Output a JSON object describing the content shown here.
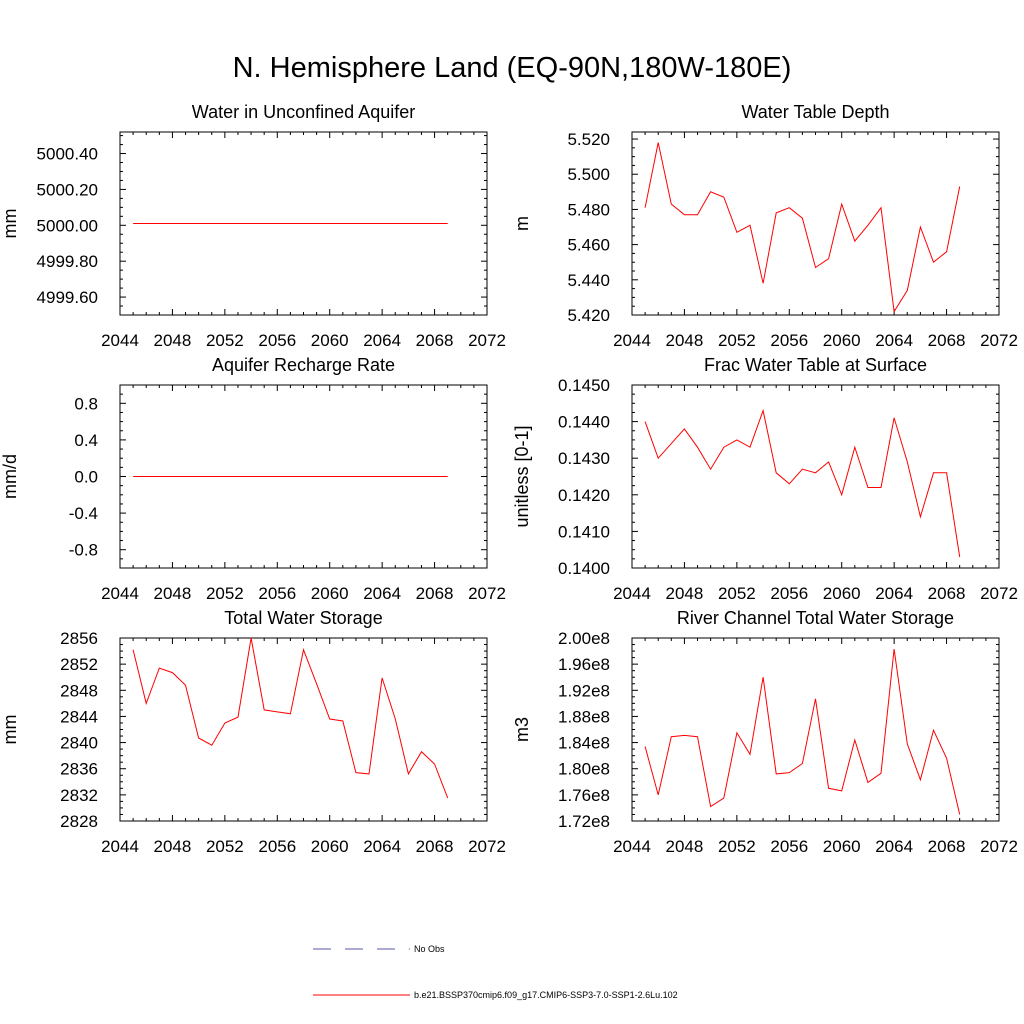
{
  "figure": {
    "title": "N. Hemisphere Land (EQ-90N,180W-180E)",
    "legend": {
      "obs_label": "No Obs",
      "obs_color": "#5555aa",
      "model_label": "b.e21.BSSP370cmip6.f09_g17.CMIP6-SSP3-7.0-SSP1-2.6Lu.102",
      "model_color": "#ff0000"
    }
  },
  "chart_data": [
    {
      "type": "line",
      "title": "Water in Unconfined Aquifer",
      "ylabel": "mm",
      "xlim": [
        2044,
        2072
      ],
      "ylim": [
        4999.5,
        5000.52
      ],
      "xticks": [
        2044,
        2048,
        2052,
        2056,
        2060,
        2064,
        2068,
        2072
      ],
      "yticks": [
        4999.6,
        4999.8,
        5000.0,
        5000.2,
        5000.4
      ],
      "ytick_labels": [
        "4999.60",
        "4999.80",
        "5000.00",
        "5000.20",
        "5000.40"
      ],
      "series": [
        {
          "color": "#ff0000",
          "x": [
            2045,
            2046,
            2047,
            2048,
            2049,
            2050,
            2051,
            2052,
            2053,
            2054,
            2055,
            2056,
            2057,
            2058,
            2059,
            2060,
            2061,
            2062,
            2063,
            2064,
            2065,
            2066,
            2067,
            2068,
            2069
          ],
          "y": [
            5000.01,
            5000.01,
            5000.01,
            5000.01,
            5000.01,
            5000.01,
            5000.01,
            5000.01,
            5000.01,
            5000.01,
            5000.01,
            5000.01,
            5000.01,
            5000.01,
            5000.01,
            5000.01,
            5000.01,
            5000.01,
            5000.01,
            5000.01,
            5000.01,
            5000.01,
            5000.01,
            5000.01,
            5000.01
          ]
        }
      ]
    },
    {
      "type": "line",
      "title": "Water Table Depth",
      "ylabel": "m",
      "xlim": [
        2044,
        2072
      ],
      "ylim": [
        5.42,
        5.524
      ],
      "xticks": [
        2044,
        2048,
        2052,
        2056,
        2060,
        2064,
        2068,
        2072
      ],
      "yticks": [
        5.42,
        5.44,
        5.46,
        5.48,
        5.5,
        5.52
      ],
      "ytick_labels": [
        "5.420",
        "5.440",
        "5.460",
        "5.480",
        "5.500",
        "5.520"
      ],
      "series": [
        {
          "color": "#ff0000",
          "x": [
            2045,
            2046,
            2047,
            2048,
            2049,
            2050,
            2051,
            2052,
            2053,
            2054,
            2055,
            2056,
            2057,
            2058,
            2059,
            2060,
            2061,
            2062,
            2063,
            2064,
            2065,
            2066,
            2067,
            2068,
            2069
          ],
          "y": [
            5.481,
            5.518,
            5.483,
            5.477,
            5.477,
            5.49,
            5.487,
            5.467,
            5.471,
            5.438,
            5.478,
            5.481,
            5.475,
            5.447,
            5.452,
            5.483,
            5.462,
            5.471,
            5.481,
            5.422,
            5.434,
            5.47,
            5.45,
            5.456,
            5.493
          ]
        }
      ]
    },
    {
      "type": "line",
      "title": "Aquifer Recharge Rate",
      "ylabel": "mm/d",
      "xlim": [
        2044,
        2072
      ],
      "ylim": [
        -1.0,
        1.0
      ],
      "xticks": [
        2044,
        2048,
        2052,
        2056,
        2060,
        2064,
        2068,
        2072
      ],
      "yticks": [
        -0.8,
        -0.4,
        0.0,
        0.4,
        0.8
      ],
      "ytick_labels": [
        "-0.8",
        "-0.4",
        "0.0",
        "0.4",
        "0.8"
      ],
      "series": [
        {
          "color": "#ff0000",
          "x": [
            2045,
            2046,
            2047,
            2048,
            2049,
            2050,
            2051,
            2052,
            2053,
            2054,
            2055,
            2056,
            2057,
            2058,
            2059,
            2060,
            2061,
            2062,
            2063,
            2064,
            2065,
            2066,
            2067,
            2068,
            2069
          ],
          "y": [
            0,
            0,
            0,
            0,
            0,
            0,
            0,
            0,
            0,
            0,
            0,
            0,
            0,
            0,
            0,
            0,
            0,
            0,
            0,
            0,
            0,
            0,
            0,
            0,
            0
          ]
        }
      ]
    },
    {
      "type": "line",
      "title": "Frac Water Table at Surface",
      "ylabel": "unitless [0-1]",
      "xlim": [
        2044,
        2072
      ],
      "ylim": [
        0.14,
        0.145
      ],
      "xticks": [
        2044,
        2048,
        2052,
        2056,
        2060,
        2064,
        2068,
        2072
      ],
      "yticks": [
        0.14,
        0.141,
        0.142,
        0.143,
        0.144,
        0.145
      ],
      "ytick_labels": [
        "0.1400",
        "0.1410",
        "0.1420",
        "0.1430",
        "0.1440",
        "0.1450"
      ],
      "series": [
        {
          "color": "#ff0000",
          "x": [
            2045,
            2046,
            2047,
            2048,
            2049,
            2050,
            2051,
            2052,
            2053,
            2054,
            2055,
            2056,
            2057,
            2058,
            2059,
            2060,
            2061,
            2062,
            2063,
            2064,
            2065,
            2066,
            2067,
            2068,
            2069
          ],
          "y": [
            0.144,
            0.143,
            0.1434,
            0.1438,
            0.1433,
            0.1427,
            0.1433,
            0.1435,
            0.1433,
            0.1443,
            0.1426,
            0.1423,
            0.1427,
            0.1426,
            0.1429,
            0.142,
            0.1433,
            0.1422,
            0.1422,
            0.1441,
            0.1429,
            0.1414,
            0.1426,
            0.1426,
            0.1403
          ]
        }
      ]
    },
    {
      "type": "line",
      "title": "Total Water Storage",
      "ylabel": "mm",
      "xlim": [
        2044,
        2072
      ],
      "ylim": [
        2828,
        2856
      ],
      "xticks": [
        2044,
        2048,
        2052,
        2056,
        2060,
        2064,
        2068,
        2072
      ],
      "yticks": [
        2828,
        2832,
        2836,
        2840,
        2844,
        2848,
        2852,
        2856
      ],
      "ytick_labels": [
        "2828",
        "2832",
        "2836",
        "2840",
        "2844",
        "2848",
        "2852",
        "2856"
      ],
      "series": [
        {
          "color": "#ff0000",
          "x": [
            2045,
            2046,
            2047,
            2048,
            2049,
            2050,
            2051,
            2052,
            2053,
            2054,
            2055,
            2056,
            2057,
            2058,
            2059,
            2060,
            2061,
            2062,
            2063,
            2064,
            2065,
            2066,
            2067,
            2068,
            2069
          ],
          "y": [
            2854.2,
            2846.0,
            2851.4,
            2850.7,
            2848.8,
            2840.7,
            2839.6,
            2843.0,
            2843.9,
            2856.0,
            2845.0,
            2844.7,
            2844.4,
            2854.2,
            2849.0,
            2843.6,
            2843.3,
            2835.4,
            2835.2,
            2849.9,
            2843.6,
            2835.2,
            2838.6,
            2836.7,
            2831.5
          ]
        }
      ]
    },
    {
      "type": "line",
      "title": "River Channel Total Water Storage",
      "ylabel": "m3",
      "xlim": [
        2044,
        2072
      ],
      "ylim": [
        172000000,
        200000000
      ],
      "xticks": [
        2044,
        2048,
        2052,
        2056,
        2060,
        2064,
        2068,
        2072
      ],
      "yticks": [
        172000000,
        176000000,
        180000000,
        184000000,
        188000000,
        192000000,
        196000000,
        200000000
      ],
      "ytick_labels": [
        "1.72e8",
        "1.76e8",
        "1.80e8",
        "1.84e8",
        "1.88e8",
        "1.92e8",
        "1.96e8",
        "2.00e8"
      ],
      "series": [
        {
          "color": "#ff0000",
          "x": [
            2045,
            2046,
            2047,
            2048,
            2049,
            2050,
            2051,
            2052,
            2053,
            2054,
            2055,
            2056,
            2057,
            2058,
            2059,
            2060,
            2061,
            2062,
            2063,
            2064,
            2065,
            2066,
            2067,
            2068,
            2069
          ],
          "y": [
            183400000,
            176000000,
            184900000,
            185100000,
            184900000,
            174200000,
            175500000,
            185500000,
            182200000,
            194000000,
            179200000,
            179400000,
            180800000,
            190700000,
            177000000,
            176600000,
            184400000,
            177900000,
            179300000,
            198300000,
            183800000,
            178300000,
            185900000,
            181600000,
            173000000
          ]
        }
      ]
    }
  ]
}
